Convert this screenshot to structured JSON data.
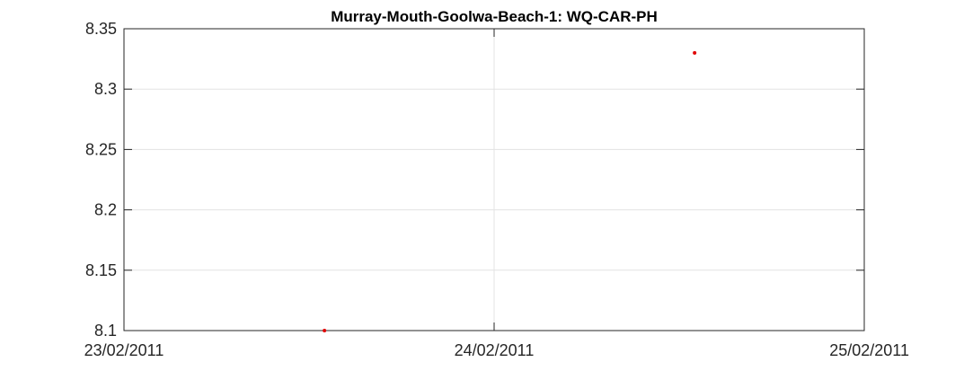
{
  "chart_data": {
    "type": "scatter",
    "title": "Murray-Mouth-Goolwa-Beach-1: WQ-CAR-PH",
    "xlabel": "",
    "ylabel": "",
    "x_ticks": [
      "23/02/2011",
      "24/02/2011",
      "25/02/2011"
    ],
    "y_ticks": [
      "8.35",
      "8.3",
      "8.25",
      "8.2",
      "8.15",
      "8.1"
    ],
    "xlim": [
      "23/02/2011 00:00",
      "25/02/2011 00:00"
    ],
    "ylim": [
      8.1,
      8.35
    ],
    "grid": true,
    "series": [
      {
        "color": "#e00000",
        "points": [
          {
            "x": "23/02/2011 13:00",
            "y": 8.1
          },
          {
            "x": "24/02/2011 13:00",
            "y": 8.33
          }
        ]
      }
    ]
  }
}
